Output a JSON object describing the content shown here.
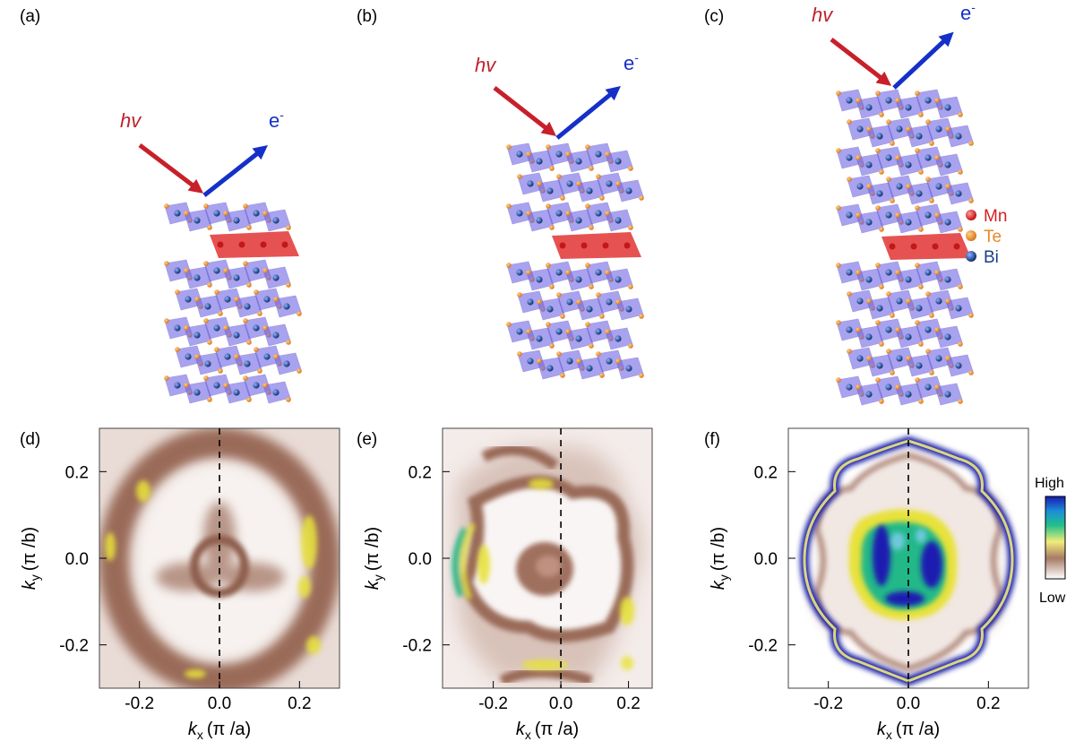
{
  "panels": {
    "a": {
      "label": "(a)",
      "hv": "hv",
      "e": "e",
      "e_sup": "-"
    },
    "b": {
      "label": "(b)",
      "hv": "hv",
      "e": "e",
      "e_sup": "-"
    },
    "c": {
      "label": "(c)",
      "hv": "hv",
      "e": "e",
      "e_sup": "-"
    },
    "d": {
      "label": "(d)"
    },
    "e": {
      "label": "(e)"
    },
    "f": {
      "label": "(f)"
    }
  },
  "legend": {
    "items": [
      {
        "label": "Mn",
        "color": "#d42020"
      },
      {
        "label": "Te",
        "color": "#e8882a"
      },
      {
        "label": "Bi",
        "color": "#1a3d8a"
      }
    ]
  },
  "colorbar": {
    "high": "High",
    "low": "Low"
  },
  "axes": {
    "xlabel_k": "k",
    "xlabel_sub": "x",
    "xlabel_unit": "(π /a)",
    "ylabel_k": "k",
    "ylabel_sub": "y",
    "ylabel_unit": "(π /b)"
  },
  "colors": {
    "photon_arrow": "#c8202a",
    "electron_arrow": "#1530c8",
    "octahedra": "#6f66e6",
    "mn_layer": "#e23434",
    "map_intensity": "#9a6a58",
    "map_high": "#e8e23a"
  },
  "chart_data": [
    {
      "type": "heatmap",
      "panel": "d",
      "xlim": [
        -0.3,
        0.3
      ],
      "ylim": [
        -0.3,
        0.3
      ],
      "xticks": [
        "-0.2",
        "0.0",
        "0.2"
      ],
      "yticks": [
        "0.2",
        "0.0",
        "-0.2"
      ],
      "dashed_line_x": 0.0
    },
    {
      "type": "heatmap",
      "panel": "e",
      "xlim": [
        -0.35,
        0.27
      ],
      "ylim": [
        -0.3,
        0.3
      ],
      "xticks": [
        "-0.2",
        "0.0",
        "0.2"
      ],
      "yticks": [
        "0.2",
        "0.0",
        "-0.2"
      ],
      "dashed_line_x": 0.0
    },
    {
      "type": "heatmap",
      "panel": "f",
      "xlim": [
        -0.3,
        0.3
      ],
      "ylim": [
        -0.3,
        0.3
      ],
      "xticks": [
        "-0.2",
        "0.0",
        "0.2"
      ],
      "yticks": [
        "0.2",
        "0.0",
        "-0.2"
      ],
      "dashed_line_x": 0.0
    }
  ]
}
